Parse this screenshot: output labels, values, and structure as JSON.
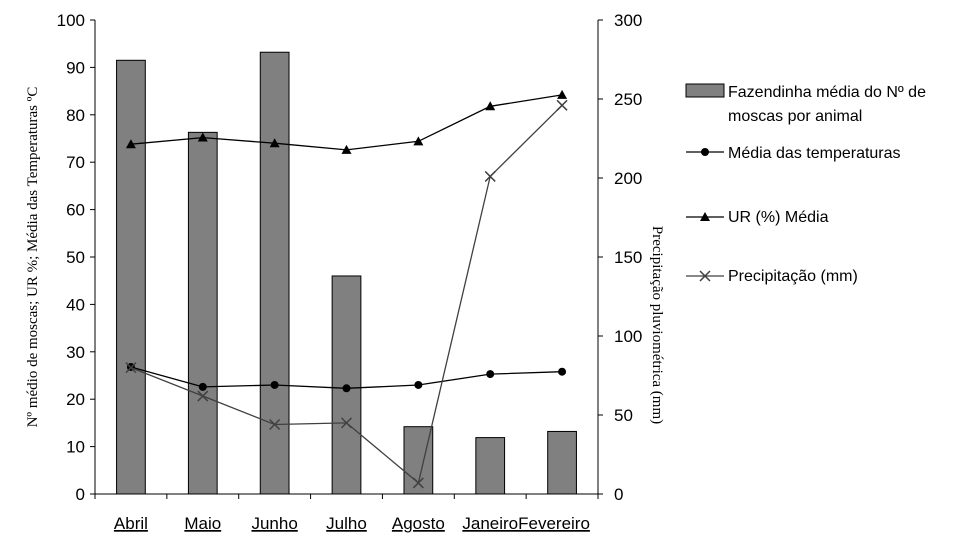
{
  "chart_data": {
    "type": "bar",
    "categories": [
      "Abril",
      "Maio",
      "Junho",
      "Julho",
      "Agosto",
      "Janeiro",
      "Fevereiro"
    ],
    "category_labels_shown": [
      "Abril",
      "Maio",
      "Junho",
      "Julho",
      "Agosto",
      "JaneiroFevereiro"
    ],
    "ylabel": "Nº médio de moscas; UR %; Média das Temperaturas ºC",
    "y2label": "Precipitação pluviométrica (mm)",
    "ylim": [
      0,
      100
    ],
    "y2lim": [
      0,
      300
    ],
    "yticks": [
      "0",
      "10",
      "20",
      "30",
      "40",
      "50",
      "60",
      "70",
      "80",
      "90",
      "100"
    ],
    "y2ticks": [
      "0",
      "50",
      "100",
      "150",
      "200",
      "250",
      "300"
    ],
    "grid": false,
    "legend_position": "right",
    "series": [
      {
        "name": "Fazendinha média do Nº de moscas por animal",
        "type": "bar",
        "axis": "left",
        "color": "#808080",
        "values": [
          91.5,
          76.3,
          93.2,
          46.0,
          14.2,
          11.9,
          13.2
        ]
      },
      {
        "name": "Média das temperaturas",
        "type": "line",
        "marker": "circle",
        "axis": "left",
        "color": "#000000",
        "values": [
          26.8,
          22.6,
          23.0,
          22.3,
          23.0,
          25.3,
          25.8
        ]
      },
      {
        "name": "UR (%) Média",
        "type": "line",
        "marker": "triangle",
        "axis": "left",
        "color": "#000000",
        "values": [
          73.8,
          75.2,
          74.0,
          72.6,
          74.4,
          81.8,
          84.2
        ]
      },
      {
        "name": "Precipitação (mm)",
        "type": "line",
        "marker": "x",
        "axis": "right",
        "color": "#404040",
        "values": [
          80,
          62,
          44,
          45,
          7,
          201,
          246
        ]
      }
    ]
  },
  "legend": {
    "bars_line1": "Fazendinha média do Nº de",
    "bars_line2": "moscas por animal",
    "temp": "Média das temperaturas",
    "ur": "UR (%) Média",
    "precip": "Precipitação (mm)"
  }
}
